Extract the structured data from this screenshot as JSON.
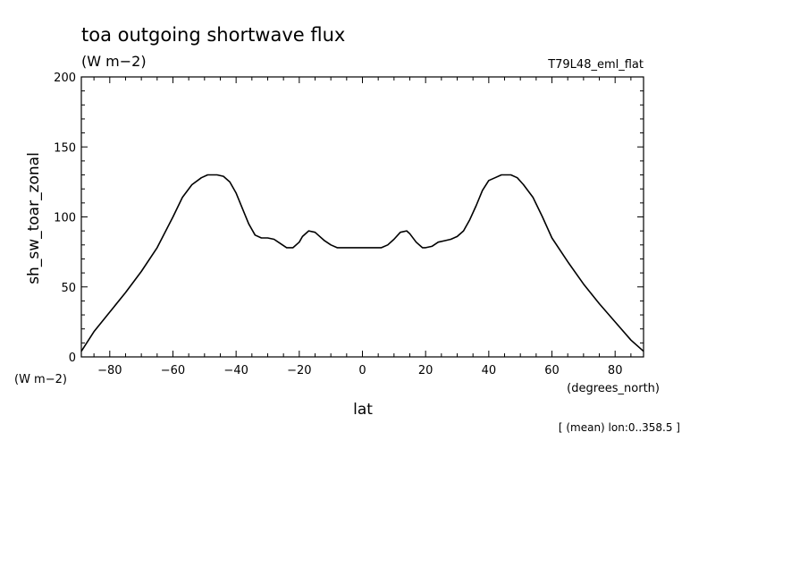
{
  "header": {
    "title": "toa outgoing shortwave flux",
    "units": "(W m−2)",
    "dataset": "T79L48_eml_flat"
  },
  "footer": {
    "y_units": "(W m−2)",
    "x_units": "(degrees_north)",
    "mean_note": "[ (mean) lon:0..358.5 ]"
  },
  "chart_data": {
    "type": "line",
    "title": "toa outgoing shortwave flux",
    "xlabel": "lat",
    "ylabel": "sh_sw_toar_zonal",
    "xlim": [
      -89,
      89
    ],
    "ylim": [
      0,
      200
    ],
    "x_ticks": [
      -80,
      -60,
      -40,
      -20,
      0,
      20,
      40,
      60,
      80
    ],
    "x_tick_labels": [
      "−80",
      "−60",
      "−40",
      "−20",
      "0",
      "20",
      "40",
      "60",
      "80"
    ],
    "y_ticks": [
      0,
      50,
      100,
      150,
      200
    ],
    "y_tick_labels": [
      "0",
      "50",
      "100",
      "150",
      "200"
    ],
    "grid": false,
    "series": [
      {
        "x": [
          -89,
          -85,
          -80,
          -75,
          -70,
          -65,
          -60,
          -57,
          -54,
          -51,
          -49,
          -47,
          -46,
          -44,
          -42,
          -40,
          -38,
          -36,
          -34,
          -32,
          -30,
          -28,
          -26,
          -24,
          -22,
          -20,
          -19,
          -17,
          -15,
          -14,
          -12,
          -10,
          -8,
          -6,
          -4,
          -2,
          0,
          2,
          4,
          6,
          8,
          10,
          12,
          14,
          15,
          17,
          19,
          20,
          22,
          24,
          26,
          28,
          30,
          32,
          34,
          36,
          38,
          40,
          42,
          44,
          46,
          47,
          49,
          51,
          54,
          57,
          60,
          65,
          70,
          75,
          80,
          85,
          89
        ],
        "values": [
          4,
          18,
          32,
          46,
          61,
          78,
          100,
          114,
          123,
          128,
          130,
          130,
          130,
          129,
          125,
          117,
          106,
          95,
          87,
          85,
          85,
          84,
          81,
          78,
          78,
          82,
          86,
          90,
          89,
          87,
          83,
          80,
          78,
          78,
          78,
          78,
          78,
          78,
          78,
          78,
          80,
          84,
          89,
          90,
          88,
          82,
          78,
          78,
          79,
          82,
          83,
          84,
          86,
          90,
          98,
          108,
          119,
          126,
          128,
          130,
          130,
          130,
          128,
          123,
          114,
          100,
          85,
          68,
          52,
          38,
          25,
          12,
          4
        ]
      }
    ]
  }
}
